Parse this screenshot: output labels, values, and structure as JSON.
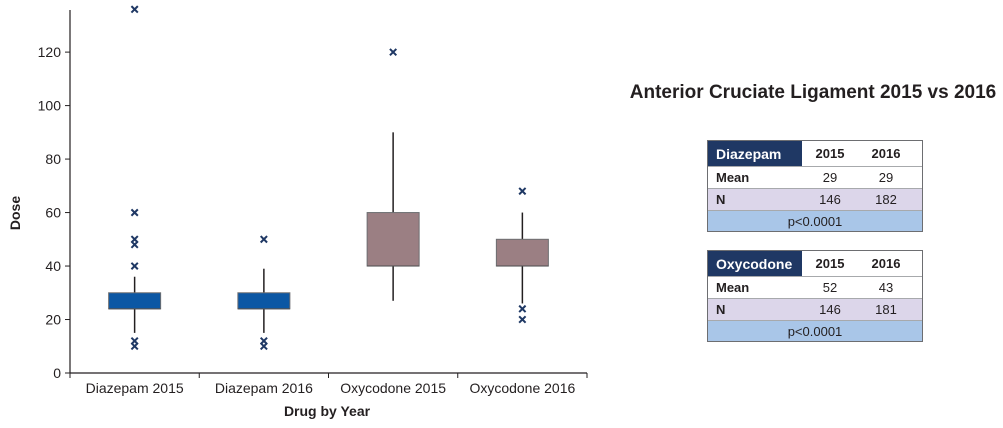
{
  "chart_data": {
    "type": "boxplot",
    "xlabel": "Drug by Year",
    "ylabel": "Dose",
    "ylim": [
      0,
      135
    ],
    "yticks": [
      0,
      20,
      40,
      60,
      80,
      100,
      120
    ],
    "categories": [
      "Diazepam 2015",
      "Diazepam 2016",
      "Oxycodone 2015",
      "Oxycodone 2016"
    ],
    "boxes": [
      {
        "category": "Diazepam 2015",
        "whisker_low": 15,
        "q1": 24,
        "median": 24,
        "q3": 30,
        "whisker_high": 36,
        "outliers": [
          10,
          12,
          40,
          48,
          50,
          60,
          136
        ],
        "color": "#0b57a4"
      },
      {
        "category": "Diazepam 2016",
        "whisker_low": 15,
        "q1": 24,
        "median": 24,
        "q3": 30,
        "whisker_high": 39,
        "outliers": [
          10,
          12,
          50
        ],
        "color": "#0b57a4"
      },
      {
        "category": "Oxycodone 2015",
        "whisker_low": 27,
        "q1": 40,
        "median": 40,
        "q3": 60,
        "whisker_high": 90,
        "outliers": [
          120
        ],
        "color": "#9b7f83"
      },
      {
        "category": "Oxycodone 2016",
        "whisker_low": 26,
        "q1": 40,
        "median": 40,
        "q3": 50,
        "whisker_high": 60,
        "outliers": [
          20,
          24,
          68
        ],
        "color": "#9b7f83"
      }
    ]
  },
  "panel": {
    "title": "Anterior Cruciate Ligament 2015 vs 2016",
    "tables": [
      {
        "drug": "Diazepam",
        "col1": "2015",
        "col2": "2016",
        "mean_label": "Mean",
        "mean_2015": "29",
        "mean_2016": "29",
        "n_label": "N",
        "n_2015": "146",
        "n_2016": "182",
        "p": "p<0.0001"
      },
      {
        "drug": "Oxycodone",
        "col1": "2015",
        "col2": "2016",
        "mean_label": "Mean",
        "mean_2015": "52",
        "mean_2016": "43",
        "n_label": "N",
        "n_2015": "146",
        "n_2016": "181",
        "p": "p<0.0001"
      }
    ]
  },
  "colors": {
    "header_bg": "#1f3864",
    "n_row_bg": "#dcd6ea",
    "p_row_bg": "#a9c6e8",
    "marker": "#1f3864"
  }
}
